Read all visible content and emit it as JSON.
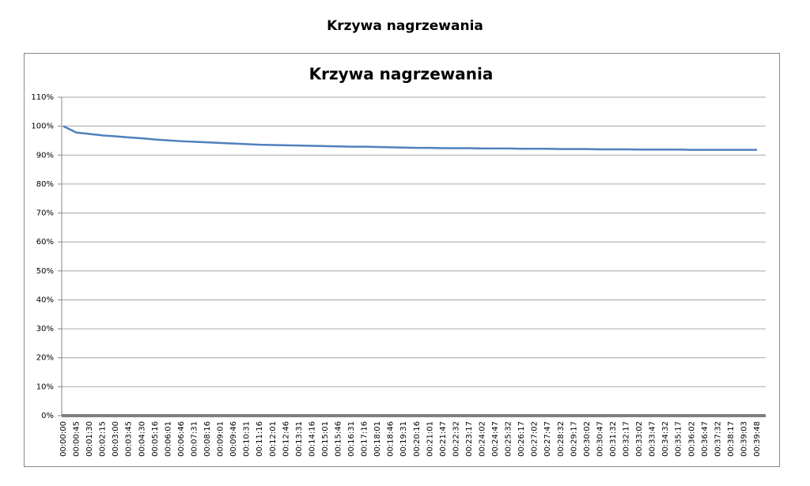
{
  "header": {
    "title": "Krzywa nagrzewania"
  },
  "chart_data": {
    "type": "line",
    "title": "Krzywa nagrzewania",
    "categories": [
      "00:00:00",
      "00:00:45",
      "00:01:30",
      "00:02:15",
      "00:03:00",
      "00:03:45",
      "00:04:30",
      "00:05:16",
      "00:06:01",
      "00:06:46",
      "00:07:31",
      "00:08:16",
      "00:09:01",
      "00:09:46",
      "00:10:31",
      "00:11:16",
      "00:12:01",
      "00:12:46",
      "00:13:31",
      "00:14:16",
      "00:15:01",
      "00:15:46",
      "00:16:31",
      "00:17:16",
      "00:18:01",
      "00:18:46",
      "00:19:31",
      "00:20:16",
      "00:21:01",
      "00:21:47",
      "00:22:32",
      "00:23:17",
      "00:24:02",
      "00:24:47",
      "00:25:32",
      "00:26:17",
      "00:27:02",
      "00:27:47",
      "00:28:32",
      "00:29:17",
      "00:30:02",
      "00:30:47",
      "00:31:32",
      "00:32:17",
      "00:33:02",
      "00:33:47",
      "00:34:32",
      "00:35:17",
      "00:36:02",
      "00:36:47",
      "00:37:32",
      "00:38:17",
      "00:39:03",
      "00:39:48"
    ],
    "values": [
      100,
      97.8,
      97.3,
      96.8,
      96.5,
      96.1,
      95.8,
      95.4,
      95.1,
      94.8,
      94.6,
      94.4,
      94.2,
      94.0,
      93.8,
      93.6,
      93.5,
      93.4,
      93.3,
      93.2,
      93.1,
      93.0,
      92.9,
      92.9,
      92.8,
      92.7,
      92.6,
      92.5,
      92.5,
      92.4,
      92.4,
      92.4,
      92.3,
      92.3,
      92.3,
      92.2,
      92.2,
      92.2,
      92.1,
      92.1,
      92.1,
      92.0,
      92.0,
      92.0,
      91.9,
      91.9,
      91.9,
      91.9,
      91.8,
      91.8,
      91.8,
      91.8,
      91.8,
      91.8
    ],
    "color": "#4f81bd",
    "ylim": [
      0,
      110
    ],
    "yticks": [
      {
        "value": 0,
        "label": "0%"
      },
      {
        "value": 10,
        "label": "10%"
      },
      {
        "value": 20,
        "label": "20%"
      },
      {
        "value": 30,
        "label": "30%"
      },
      {
        "value": 40,
        "label": "40%"
      },
      {
        "value": 50,
        "label": "50%"
      },
      {
        "value": 60,
        "label": "60%"
      },
      {
        "value": 70,
        "label": "70%"
      },
      {
        "value": 80,
        "label": "80%"
      },
      {
        "value": 90,
        "label": "90%"
      },
      {
        "value": 100,
        "label": "100%"
      },
      {
        "value": 110,
        "label": "110%"
      }
    ],
    "grid": true
  }
}
